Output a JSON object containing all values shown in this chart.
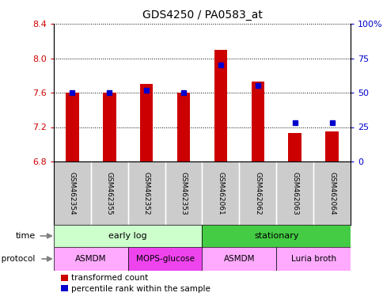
{
  "title": "GDS4250 / PA0583_at",
  "samples": [
    "GSM462354",
    "GSM462355",
    "GSM462352",
    "GSM462353",
    "GSM462061",
    "GSM462062",
    "GSM462063",
    "GSM462064"
  ],
  "transformed_counts": [
    7.6,
    7.6,
    7.7,
    7.6,
    8.1,
    7.73,
    7.13,
    7.15
  ],
  "percentile_ranks": [
    50,
    50,
    52,
    50,
    70,
    55,
    28,
    28
  ],
  "ylim_left": [
    6.8,
    8.4
  ],
  "ylim_right": [
    0,
    100
  ],
  "yticks_left": [
    6.8,
    7.2,
    7.6,
    8.0,
    8.4
  ],
  "yticks_right": [
    0,
    25,
    50,
    75,
    100
  ],
  "bar_color": "#cc0000",
  "dot_color": "#0000cc",
  "bar_bottom": 6.8,
  "time_groups": [
    {
      "label": "early log",
      "start": 0,
      "end": 4,
      "color": "#ccffcc"
    },
    {
      "label": "stationary",
      "start": 4,
      "end": 8,
      "color": "#44cc44"
    }
  ],
  "protocol_groups": [
    {
      "label": "ASMDM",
      "start": 0,
      "end": 2,
      "color": "#ffaaff"
    },
    {
      "label": "MOPS-glucose",
      "start": 2,
      "end": 4,
      "color": "#ee44ee"
    },
    {
      "label": "ASMDM",
      "start": 4,
      "end": 6,
      "color": "#ffaaff"
    },
    {
      "label": "Luria broth",
      "start": 6,
      "end": 8,
      "color": "#ffaaff"
    }
  ],
  "legend_bar_label": "transformed count",
  "legend_dot_label": "percentile rank within the sample",
  "ylabel_left_color": "#cc0000",
  "ylabel_right_color": "#0000cc",
  "plot_bg_color": "#ffffff",
  "sample_bg_color": "#cccccc",
  "fig_width": 4.85,
  "fig_height": 3.84,
  "dpi": 100
}
